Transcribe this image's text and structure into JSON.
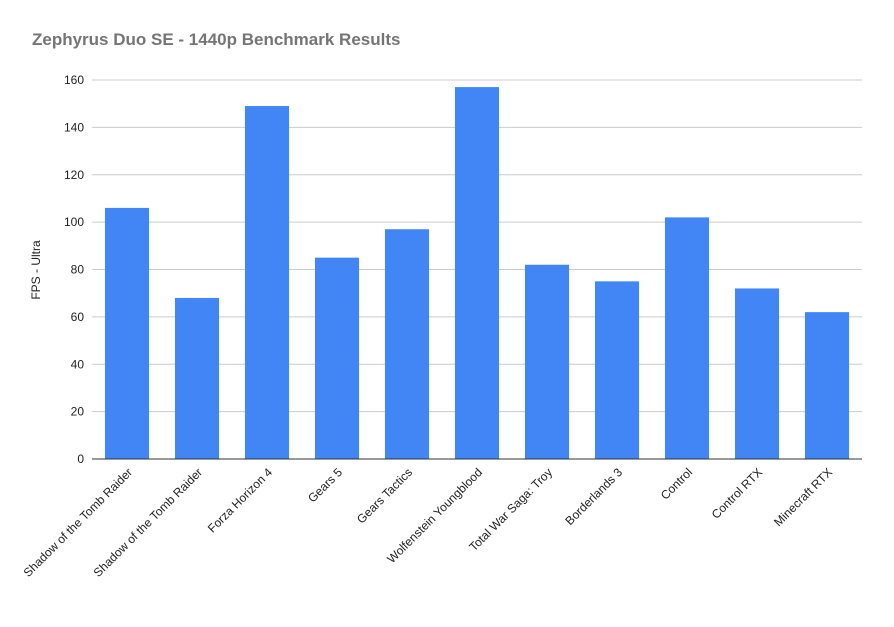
{
  "chart_data": {
    "type": "bar",
    "title": "Zephyrus Duo SE - 1440p Benchmark Results",
    "xlabel": "",
    "ylabel": "FPS - Ultra",
    "ylim": [
      0,
      160
    ],
    "yticks": [
      0,
      20,
      40,
      60,
      80,
      100,
      120,
      140,
      160
    ],
    "grid": true,
    "legend": "none",
    "bar_color": "#4285f4",
    "categories": [
      "Shadow of the Tomb Raider",
      "Shadow of the Tomb Raider",
      "Forza Horizon 4",
      "Gears 5",
      "Gears Tactics",
      "Wolfenstein Youngblood",
      "Total War Saga: Troy",
      "Borderlands 3",
      "Control",
      "Control RTX",
      "Minecraft RTX"
    ],
    "values": [
      106,
      68,
      149,
      85,
      97,
      157,
      82,
      75,
      102,
      72,
      62
    ]
  }
}
